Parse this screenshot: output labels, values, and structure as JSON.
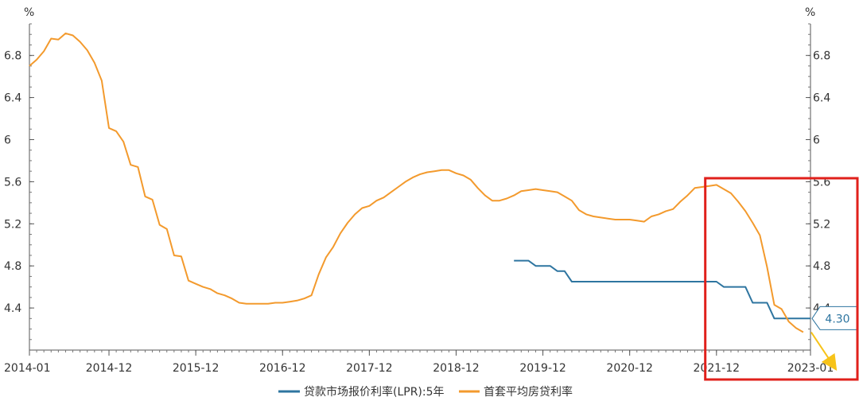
{
  "chart_data": {
    "type": "line",
    "title": "",
    "xlabel": "",
    "ylabel": "%",
    "ylabel_right": "%",
    "ylim": [
      4.0,
      7.1
    ],
    "yticks": [
      "4.4",
      "4.8",
      "5.2",
      "5.6",
      "6",
      "6.4",
      "6.8"
    ],
    "x_range": [
      "2014-01",
      "2023-01"
    ],
    "x_ticks": [
      "2014-01",
      "2014-12",
      "2015-12",
      "2016-12",
      "2017-12",
      "2018-12",
      "2019-12",
      "2020-12",
      "2021-12",
      "2023-01"
    ],
    "series": [
      {
        "name": "贷款市场报价利率(LPR):5年",
        "color": "#2E75A0",
        "points": [
          [
            "2019-08",
            4.85
          ],
          [
            "2019-09",
            4.85
          ],
          [
            "2019-10",
            4.85
          ],
          [
            "2019-11",
            4.8
          ],
          [
            "2019-12",
            4.8
          ],
          [
            "2020-01",
            4.8
          ],
          [
            "2020-02",
            4.75
          ],
          [
            "2020-03",
            4.75
          ],
          [
            "2020-04",
            4.65
          ],
          [
            "2020-05",
            4.65
          ],
          [
            "2020-12",
            4.65
          ],
          [
            "2021-06",
            4.65
          ],
          [
            "2021-12",
            4.65
          ],
          [
            "2022-01",
            4.6
          ],
          [
            "2022-02",
            4.6
          ],
          [
            "2022-03",
            4.6
          ],
          [
            "2022-04",
            4.6
          ],
          [
            "2022-05",
            4.45
          ],
          [
            "2022-06",
            4.45
          ],
          [
            "2022-07",
            4.45
          ],
          [
            "2022-08",
            4.3
          ],
          [
            "2022-09",
            4.3
          ],
          [
            "2022-10",
            4.3
          ],
          [
            "2022-11",
            4.3
          ],
          [
            "2022-12",
            4.3
          ],
          [
            "2023-01",
            4.3
          ]
        ]
      },
      {
        "name": "首套平均房贷利率",
        "color": "#F39A2D",
        "points": [
          [
            "2014-01",
            6.7
          ],
          [
            "2014-02",
            6.76
          ],
          [
            "2014-03",
            6.84
          ],
          [
            "2014-04",
            6.96
          ],
          [
            "2014-05",
            6.95
          ],
          [
            "2014-06",
            7.01
          ],
          [
            "2014-07",
            6.99
          ],
          [
            "2014-08",
            6.93
          ],
          [
            "2014-09",
            6.85
          ],
          [
            "2014-10",
            6.73
          ],
          [
            "2014-11",
            6.56
          ],
          [
            "2014-12",
            6.11
          ],
          [
            "2015-01",
            6.08
          ],
          [
            "2015-02",
            5.98
          ],
          [
            "2015-03",
            5.76
          ],
          [
            "2015-04",
            5.74
          ],
          [
            "2015-05",
            5.46
          ],
          [
            "2015-06",
            5.43
          ],
          [
            "2015-07",
            5.19
          ],
          [
            "2015-08",
            5.15
          ],
          [
            "2015-09",
            4.9
          ],
          [
            "2015-10",
            4.89
          ],
          [
            "2015-11",
            4.66
          ],
          [
            "2015-12",
            4.63
          ],
          [
            "2016-01",
            4.6
          ],
          [
            "2016-02",
            4.58
          ],
          [
            "2016-03",
            4.54
          ],
          [
            "2016-04",
            4.52
          ],
          [
            "2016-05",
            4.49
          ],
          [
            "2016-06",
            4.45
          ],
          [
            "2016-07",
            4.44
          ],
          [
            "2016-08",
            4.44
          ],
          [
            "2016-09",
            4.44
          ],
          [
            "2016-10",
            4.44
          ],
          [
            "2016-11",
            4.45
          ],
          [
            "2016-12",
            4.45
          ],
          [
            "2017-01",
            4.46
          ],
          [
            "2017-02",
            4.47
          ],
          [
            "2017-03",
            4.49
          ],
          [
            "2017-04",
            4.52
          ],
          [
            "2017-05",
            4.72
          ],
          [
            "2017-06",
            4.88
          ],
          [
            "2017-07",
            4.98
          ],
          [
            "2017-08",
            5.11
          ],
          [
            "2017-09",
            5.21
          ],
          [
            "2017-10",
            5.29
          ],
          [
            "2017-11",
            5.35
          ],
          [
            "2017-12",
            5.37
          ],
          [
            "2018-01",
            5.42
          ],
          [
            "2018-02",
            5.45
          ],
          [
            "2018-03",
            5.5
          ],
          [
            "2018-04",
            5.55
          ],
          [
            "2018-05",
            5.6
          ],
          [
            "2018-06",
            5.64
          ],
          [
            "2018-07",
            5.67
          ],
          [
            "2018-08",
            5.69
          ],
          [
            "2018-09",
            5.7
          ],
          [
            "2018-10",
            5.71
          ],
          [
            "2018-11",
            5.71
          ],
          [
            "2018-12",
            5.68
          ],
          [
            "2019-01",
            5.66
          ],
          [
            "2019-02",
            5.62
          ],
          [
            "2019-03",
            5.54
          ],
          [
            "2019-04",
            5.47
          ],
          [
            "2019-05",
            5.42
          ],
          [
            "2019-06",
            5.42
          ],
          [
            "2019-07",
            5.44
          ],
          [
            "2019-08",
            5.47
          ],
          [
            "2019-09",
            5.51
          ],
          [
            "2019-10",
            5.52
          ],
          [
            "2019-11",
            5.53
          ],
          [
            "2019-12",
            5.52
          ],
          [
            "2020-01",
            5.51
          ],
          [
            "2020-02",
            5.5
          ],
          [
            "2020-03",
            5.46
          ],
          [
            "2020-04",
            5.42
          ],
          [
            "2020-05",
            5.33
          ],
          [
            "2020-06",
            5.29
          ],
          [
            "2020-07",
            5.27
          ],
          [
            "2020-08",
            5.26
          ],
          [
            "2020-09",
            5.25
          ],
          [
            "2020-10",
            5.24
          ],
          [
            "2020-11",
            5.24
          ],
          [
            "2020-12",
            5.24
          ],
          [
            "2021-01",
            5.23
          ],
          [
            "2021-02",
            5.22
          ],
          [
            "2021-03",
            5.27
          ],
          [
            "2021-04",
            5.29
          ],
          [
            "2021-05",
            5.32
          ],
          [
            "2021-06",
            5.34
          ],
          [
            "2021-07",
            5.41
          ],
          [
            "2021-08",
            5.47
          ],
          [
            "2021-09",
            5.54
          ],
          [
            "2021-10",
            5.55
          ],
          [
            "2021-11",
            5.56
          ],
          [
            "2021-12",
            5.57
          ],
          [
            "2022-01",
            5.53
          ],
          [
            "2022-02",
            5.49
          ],
          [
            "2022-03",
            5.41
          ],
          [
            "2022-04",
            5.32
          ],
          [
            "2022-05",
            5.21
          ],
          [
            "2022-06",
            5.09
          ],
          [
            "2022-07",
            4.79
          ],
          [
            "2022-08",
            4.43
          ],
          [
            "2022-09",
            4.39
          ],
          [
            "2022-10",
            4.27
          ],
          [
            "2022-11",
            4.21
          ],
          [
            "2022-12",
            4.17
          ]
        ]
      }
    ],
    "annotations": {
      "lpr_last_label": "4.30",
      "highlight_box": {
        "from": "2021-11",
        "to": "2023-02",
        "color": "#E0201B"
      },
      "trend_arrow": {
        "from": [
          "2022-12",
          4.17
        ],
        "to": [
          "2023-01",
          4.04
        ],
        "color": "#F7C319"
      }
    },
    "legend_position": "bottom-center"
  }
}
